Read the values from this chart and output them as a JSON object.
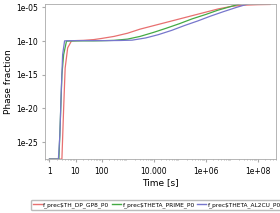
{
  "title": "",
  "xlabel": "Time [s]",
  "ylabel": "Phase fraction",
  "xlim_log": [
    0.7,
    500000000.0
  ],
  "ylim_log": [
    3e-28,
    3e-05
  ],
  "background_color": "#ffffff",
  "series": [
    {
      "label": "f_prec$TH_DP_GP8_P0",
      "color": "#e87070",
      "x": [
        1.0,
        1.5,
        2.0,
        2.5,
        3.0,
        3.5,
        4.0,
        5.0,
        7.0,
        10,
        20,
        50,
        100,
        300,
        1000,
        3000,
        10000,
        30000,
        100000,
        300000,
        1000000,
        3000000,
        10000000.0,
        30000000.0,
        100000000.0,
        300000000.0
      ],
      "y": [
        3e-28,
        3e-28,
        3e-28,
        3e-28,
        3e-28,
        1e-20,
        1e-14,
        1e-11,
        1.1e-10,
        1.2e-10,
        1.3e-10,
        1.7e-10,
        2.5e-10,
        5e-10,
        1.5e-09,
        6e-09,
        2e-08,
        6e-08,
        2e-07,
        6e-07,
        2e-06,
        6e-06,
        1.5e-05,
        2.2e-05,
        2.6e-05,
        2.8e-05
      ]
    },
    {
      "label": "f_prec$THETA_PRIME_P0",
      "color": "#44aa44",
      "x": [
        1.0,
        1.5,
        1.8,
        2.0,
        2.3,
        2.6,
        3.0,
        3.5,
        4.5,
        6,
        10,
        20,
        50,
        100,
        300,
        1000,
        3000,
        10000,
        30000,
        100000,
        300000,
        1000000,
        3000000,
        10000000.0,
        30000000.0,
        100000000.0,
        300000000.0
      ],
      "y": [
        3e-28,
        3e-28,
        3e-28,
        3e-28,
        3e-28,
        1e-22,
        1e-15,
        1e-12,
        1e-10,
        1.05e-10,
        1.08e-10,
        1.1e-10,
        1.1e-10,
        1.15e-10,
        1.3e-10,
        2e-10,
        5e-10,
        2e-09,
        8e-09,
        4e-08,
        2e-07,
        9e-07,
        4e-06,
        1.5e-05,
        5e-05,
        0.00011,
        0.00014
      ]
    },
    {
      "label": "f_prec$THETA_AL2CU_P0",
      "color": "#7777cc",
      "x": [
        1.0,
        1.5,
        2.0,
        2.2,
        2.5,
        2.8,
        3.2,
        3.8,
        5.0,
        7,
        12,
        25,
        60,
        150,
        500,
        1500,
        5000,
        15000,
        50000,
        150000,
        500000,
        1500000,
        5000000,
        15000000.0,
        50000000.0,
        150000000.0
      ],
      "y": [
        3e-28,
        3e-28,
        3e-28,
        3e-28,
        1e-24,
        1e-18,
        1e-12,
        1.1e-10,
        1.15e-10,
        1.18e-10,
        1.2e-10,
        1.2e-10,
        1.2e-10,
        1.2e-10,
        1.25e-10,
        1.4e-10,
        3e-10,
        9e-10,
        4e-09,
        2e-08,
        1e-07,
        5e-07,
        2.5e-06,
        1e-05,
        4e-05,
        0.00012
      ]
    }
  ],
  "yticks": [
    1e-25,
    1e-20,
    1e-15,
    1e-10,
    1e-05
  ],
  "ytick_labels": [
    "1e-25",
    "1e-20",
    "1e-15",
    "1e-10",
    "1e-05"
  ],
  "xticks": [
    1,
    10,
    100,
    10000,
    1000000,
    100000000.0
  ],
  "xtick_labels": [
    "1",
    "10",
    "100",
    "10.000",
    "1e+06",
    "1e+08"
  ],
  "legend_labels": [
    "f_prec$TH_DP_GP8_P0",
    "f_prec$THETA_PRIME_P0",
    "f_prec$THETA_AL2CU_P0"
  ],
  "legend_colors": [
    "#e87070",
    "#44aa44",
    "#7777cc"
  ]
}
